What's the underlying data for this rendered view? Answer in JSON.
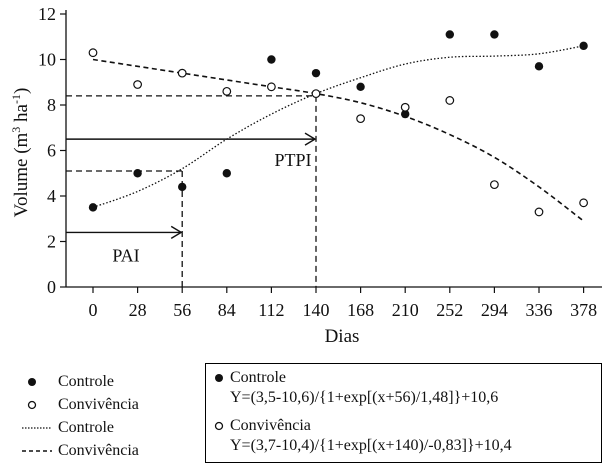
{
  "chart_data": {
    "type": "scatter",
    "ylabel": "Volume (m",
    "ylabel_sup1": "3",
    "ylabel_mid": " ha",
    "ylabel_sup2": "-1",
    "ylabel_end": ")",
    "xlabel": "Dias",
    "x_ticks": [
      0,
      28,
      56,
      84,
      112,
      140,
      168,
      210,
      252,
      294,
      336,
      378
    ],
    "y_ticks": [
      0,
      2,
      4,
      6,
      8,
      10,
      12
    ],
    "ylim": [
      0,
      12
    ],
    "series": [
      {
        "name": "Controle",
        "marker": "filled-circle",
        "values": [
          3.5,
          5.0,
          4.4,
          5.0,
          10.0,
          9.4,
          8.8,
          7.6,
          11.1,
          11.1,
          9.7,
          10.6
        ]
      },
      {
        "name": "Convivência",
        "marker": "open-circle",
        "values": [
          10.3,
          8.9,
          9.4,
          8.6,
          8.8,
          8.5,
          7.4,
          7.9,
          8.2,
          4.5,
          3.3,
          3.7
        ]
      }
    ],
    "fits": [
      {
        "name": "Controle",
        "style": "dotted",
        "x": [
          0,
          28,
          56,
          84,
          112,
          140,
          168,
          210,
          252,
          294,
          336,
          378
        ],
        "y": [
          3.5,
          4.2,
          5.2,
          6.5,
          7.6,
          8.5,
          9.2,
          9.8,
          10.1,
          10.15,
          10.25,
          10.6
        ]
      },
      {
        "name": "Convivência",
        "style": "dashed",
        "x": [
          0,
          28,
          56,
          84,
          112,
          140,
          168,
          210,
          252,
          294,
          336,
          378
        ],
        "y": [
          10.0,
          9.7,
          9.4,
          9.1,
          8.8,
          8.5,
          8.1,
          7.5,
          6.7,
          5.7,
          4.4,
          2.9
        ]
      }
    ],
    "annotations": [
      {
        "label": "PAI",
        "arrow_to_x": 56,
        "level": 2.4,
        "ref_y": 5.1
      },
      {
        "label": "PTPI",
        "arrow_to_x": 140,
        "level": 6.5,
        "ref_y": 8.4
      }
    ]
  },
  "legend": {
    "items": [
      {
        "label": "Controle",
        "kind": "filled-dot"
      },
      {
        "label": "Convivência",
        "kind": "open-dot"
      },
      {
        "label": "Controle",
        "kind": "dotted-line"
      },
      {
        "label": "Convivência",
        "kind": "dashed-line"
      }
    ]
  },
  "equations": {
    "controle_name": "Controle",
    "controle_eq": "Y=(3,5-10,6)/{1+exp[(x+56)/1,48]}+10,6",
    "convivencia_name": "Convivência",
    "convivencia_eq": "Y=(3,7-10,4)/{1+exp[(x+140)/-0,83]}+10,4"
  }
}
